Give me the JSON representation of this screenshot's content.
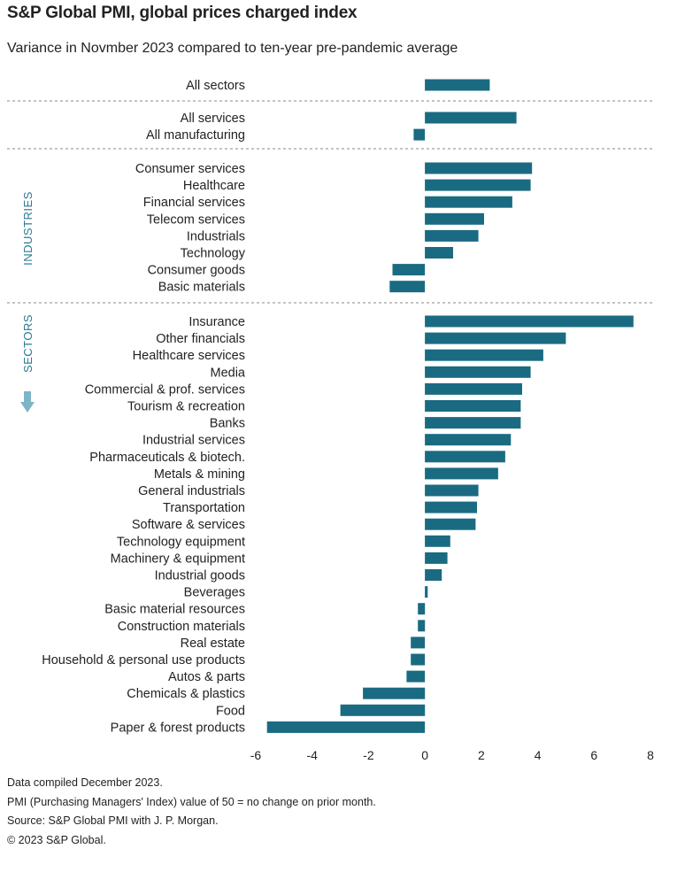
{
  "chart_data": {
    "type": "bar",
    "orientation": "horizontal",
    "title": "S&P Global PMI, global prices charged index",
    "subtitle": "Variance in Novmber 2023 compared to ten-year pre-pandemic average",
    "xlim": [
      -6,
      8
    ],
    "xticks": [
      "-6",
      "-4",
      "-2",
      "0",
      "2",
      "4",
      "6",
      "8"
    ],
    "bar_color": "#1a6b82",
    "group_labels": [
      "INDUSTRIES",
      "SECTORS"
    ],
    "categories": [
      "All sectors",
      "All services",
      "All manufacturing",
      "Consumer services",
      "Healthcare",
      "Financial services",
      "Telecom services",
      "Industrials",
      "Technology",
      "Consumer goods",
      "Basic materials",
      "Insurance",
      "Other financials",
      "Healthcare services",
      "Media",
      "Commercial & prof. services",
      "Tourism & recreation",
      "Banks",
      "Industrial services",
      "Pharmaceuticals & biotech.",
      "Metals & mining",
      "General industrials",
      "Transportation",
      "Software & services",
      "Technology equipment",
      "Machinery & equipment",
      "Industrial goods",
      "Beverages",
      "Basic material resources",
      "Construction materials",
      "Real estate",
      "Household & personal use products",
      "Autos & parts",
      "Chemicals & plastics",
      "Food",
      "Paper & forest products"
    ],
    "values": [
      2.3,
      3.25,
      -0.4,
      3.8,
      3.75,
      3.1,
      2.1,
      1.9,
      1.0,
      -1.15,
      -1.25,
      7.4,
      5.0,
      4.2,
      3.75,
      3.45,
      3.4,
      3.4,
      3.05,
      2.85,
      2.6,
      1.9,
      1.85,
      1.8,
      0.9,
      0.8,
      0.6,
      0.1,
      -0.25,
      -0.25,
      -0.5,
      -0.5,
      -0.65,
      -2.2,
      -3.0,
      -5.6
    ]
  },
  "notes": [
    "Data compiled December 2023.",
    "PMI (Purchasing Managers' Index) value of 50 = no change on prior month.",
    "Source: S&P Global PMI with J. P. Morgan.",
    "© 2023 S&P Global."
  ]
}
